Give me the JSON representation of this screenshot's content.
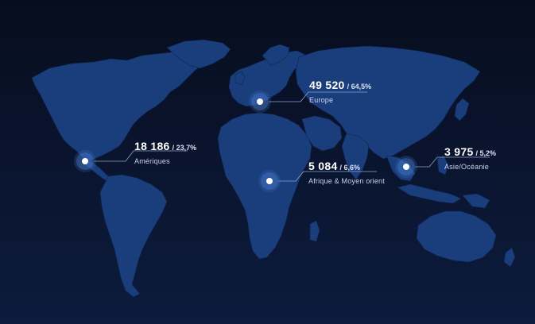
{
  "colors": {
    "background_top": "#070d1d",
    "background_bottom": "#0d1b3d",
    "land": "#1a3d7c",
    "marker_halo": "#4678c8",
    "connector_line": "#8aa3cf",
    "text_primary": "#ffffff"
  },
  "regions": [
    {
      "id": "europe",
      "value": "49 520",
      "share": "/ 64,5%",
      "label": "Europe"
    },
    {
      "id": "ameriques",
      "value": "18 186",
      "share": "/ 23,7%",
      "label": "Amériques"
    },
    {
      "id": "afrique",
      "value": "5 084",
      "share": "/ 6,6%",
      "label": "Afrique & Moyen orient"
    },
    {
      "id": "asie",
      "value": "3 975",
      "share": "/ 5,2%",
      "label": "Asie/Océanie"
    }
  ]
}
